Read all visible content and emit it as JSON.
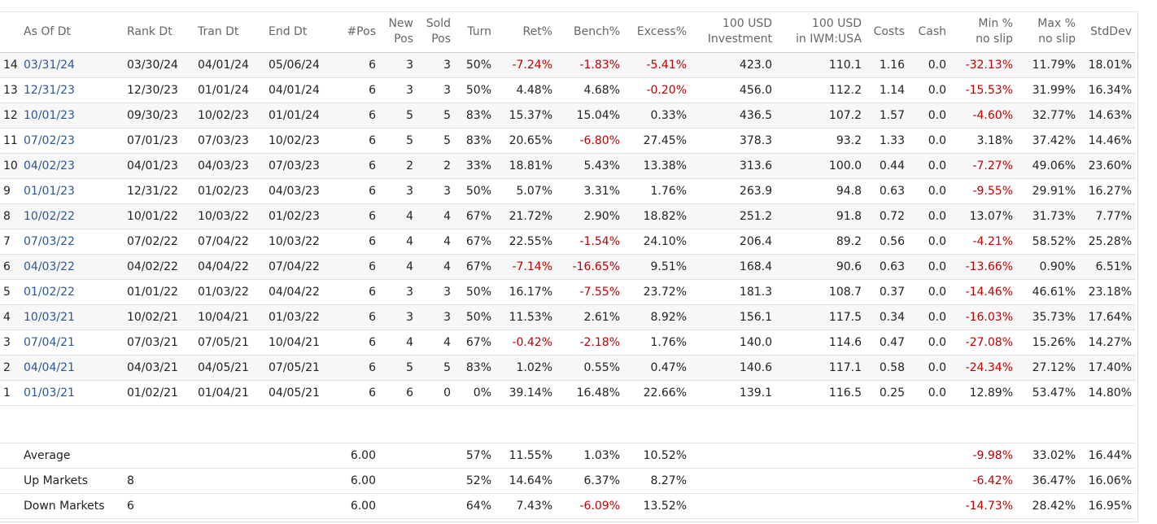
{
  "headers": {
    "num": "",
    "as_of": "As Of Dt",
    "rank": "Rank Dt",
    "tran": "Tran Dt",
    "end": "End Dt",
    "pos": "#Pos",
    "new1": "New",
    "new2": "Pos",
    "sold1": "Sold",
    "sold2": "Pos",
    "turn": "Turn",
    "ret": "Ret%",
    "bench": "Bench%",
    "excess": "Excess%",
    "inv1": "100 USD",
    "inv2": "Investment",
    "iwm1": "100 USD",
    "iwm2": "in IWM:USA",
    "costs": "Costs",
    "cash": "Cash",
    "min1": "Min %",
    "min2": "no slip",
    "max1": "Max %",
    "max2": "no slip",
    "std": "StdDev"
  },
  "rows": [
    [
      "14",
      "03/31/24",
      "03/30/24",
      "04/01/24",
      "05/06/24",
      "6",
      "3",
      "3",
      "50%",
      "-7.24%",
      "-1.83%",
      "-5.41%",
      "423.0",
      "110.1",
      "1.16",
      "0.0",
      "-32.13%",
      "11.79%",
      "18.01%"
    ],
    [
      "13",
      "12/31/23",
      "12/30/23",
      "01/01/24",
      "04/01/24",
      "6",
      "3",
      "3",
      "50%",
      "4.48%",
      "4.68%",
      "-0.20%",
      "456.0",
      "112.2",
      "1.14",
      "0.0",
      "-15.53%",
      "31.99%",
      "16.34%"
    ],
    [
      "12",
      "10/01/23",
      "09/30/23",
      "10/02/23",
      "01/01/24",
      "6",
      "5",
      "5",
      "83%",
      "15.37%",
      "15.04%",
      "0.33%",
      "436.5",
      "107.2",
      "1.57",
      "0.0",
      "-4.60%",
      "32.77%",
      "14.63%"
    ],
    [
      "11",
      "07/02/23",
      "07/01/23",
      "07/03/23",
      "10/02/23",
      "6",
      "5",
      "5",
      "83%",
      "20.65%",
      "-6.80%",
      "27.45%",
      "378.3",
      "93.2",
      "1.33",
      "0.0",
      "3.18%",
      "37.42%",
      "14.46%"
    ],
    [
      "10",
      "04/02/23",
      "04/01/23",
      "04/03/23",
      "07/03/23",
      "6",
      "2",
      "2",
      "33%",
      "18.81%",
      "5.43%",
      "13.38%",
      "313.6",
      "100.0",
      "0.44",
      "0.0",
      "-7.27%",
      "49.06%",
      "23.60%"
    ],
    [
      "9",
      "01/01/23",
      "12/31/22",
      "01/02/23",
      "04/03/23",
      "6",
      "3",
      "3",
      "50%",
      "5.07%",
      "3.31%",
      "1.76%",
      "263.9",
      "94.8",
      "0.63",
      "0.0",
      "-9.55%",
      "29.91%",
      "16.27%"
    ],
    [
      "8",
      "10/02/22",
      "10/01/22",
      "10/03/22",
      "01/02/23",
      "6",
      "4",
      "4",
      "67%",
      "21.72%",
      "2.90%",
      "18.82%",
      "251.2",
      "91.8",
      "0.72",
      "0.0",
      "13.07%",
      "31.73%",
      "7.77%"
    ],
    [
      "7",
      "07/03/22",
      "07/02/22",
      "07/04/22",
      "10/03/22",
      "6",
      "4",
      "4",
      "67%",
      "22.55%",
      "-1.54%",
      "24.10%",
      "206.4",
      "89.2",
      "0.56",
      "0.0",
      "-4.21%",
      "58.52%",
      "25.28%"
    ],
    [
      "6",
      "04/03/22",
      "04/02/22",
      "04/04/22",
      "07/04/22",
      "6",
      "4",
      "4",
      "67%",
      "-7.14%",
      "-16.65%",
      "9.51%",
      "168.4",
      "90.6",
      "0.63",
      "0.0",
      "-13.66%",
      "0.90%",
      "6.51%"
    ],
    [
      "5",
      "01/02/22",
      "01/01/22",
      "01/03/22",
      "04/04/22",
      "6",
      "3",
      "3",
      "50%",
      "16.17%",
      "-7.55%",
      "23.72%",
      "181.3",
      "108.7",
      "0.37",
      "0.0",
      "-14.46%",
      "46.61%",
      "23.18%"
    ],
    [
      "4",
      "10/03/21",
      "10/02/21",
      "10/04/21",
      "01/03/22",
      "6",
      "3",
      "3",
      "50%",
      "11.53%",
      "2.61%",
      "8.92%",
      "156.1",
      "117.5",
      "0.34",
      "0.0",
      "-16.03%",
      "35.73%",
      "17.64%"
    ],
    [
      "3",
      "07/04/21",
      "07/03/21",
      "07/05/21",
      "10/04/21",
      "6",
      "4",
      "4",
      "67%",
      "-0.42%",
      "-2.18%",
      "1.76%",
      "140.0",
      "114.6",
      "0.47",
      "0.0",
      "-27.08%",
      "15.26%",
      "14.27%"
    ],
    [
      "2",
      "04/04/21",
      "04/03/21",
      "04/05/21",
      "07/05/21",
      "6",
      "5",
      "5",
      "83%",
      "1.02%",
      "0.55%",
      "0.47%",
      "140.6",
      "117.1",
      "0.58",
      "0.0",
      "-24.34%",
      "27.12%",
      "17.40%"
    ],
    [
      "1",
      "01/03/21",
      "01/02/21",
      "01/04/21",
      "04/05/21",
      "6",
      "6",
      "0",
      "0%",
      "39.14%",
      "16.48%",
      "22.66%",
      "139.1",
      "116.5",
      "0.25",
      "0.0",
      "12.89%",
      "53.47%",
      "14.80%"
    ]
  ],
  "summary": [
    {
      "label": "Average",
      "rank": "",
      "pos": "6.00",
      "turn": "57%",
      "ret": "11.55%",
      "bench": "1.03%",
      "excess": "10.52%",
      "min": "-9.98%",
      "max": "33.02%",
      "std": "16.44%"
    },
    {
      "label": "Up Markets",
      "rank": "8",
      "pos": "6.00",
      "turn": "52%",
      "ret": "14.64%",
      "bench": "6.37%",
      "excess": "8.27%",
      "min": "-6.42%",
      "max": "36.47%",
      "std": "16.06%"
    },
    {
      "label": "Down Markets",
      "rank": "6",
      "pos": "6.00",
      "turn": "64%",
      "ret": "7.43%",
      "bench": "-6.09%",
      "excess": "13.52%",
      "min": "-14.73%",
      "max": "28.42%",
      "std": "16.95%"
    }
  ]
}
